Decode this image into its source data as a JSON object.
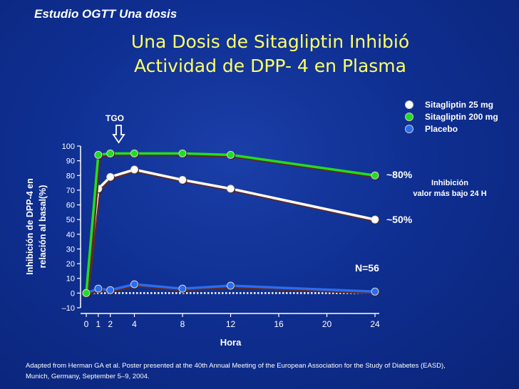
{
  "study_tag": "Estudio OGTT Una dosis",
  "title_line1": "Una Dosis de  Sitagliptin Inhibió",
  "title_line2": "Actividad de DPP- 4  en Plasma",
  "citation_line1": "Adapted from Herman GA et al. Poster presented at the 40th Annual Meeting of the European Association for the Study of Diabetes (EASD),",
  "citation_line2": "Munich, Germany, September 5–9, 2004.",
  "chart_data": {
    "type": "line",
    "xlabel": "Hora",
    "ylabel_line1": "Inhibición de DPP-4 en",
    "ylabel_line2": "relación al basal(%)",
    "ylim": [
      -10,
      100
    ],
    "yticks": [
      -10,
      0,
      10,
      20,
      30,
      40,
      50,
      60,
      70,
      80,
      90,
      100
    ],
    "ytick_labels": [
      "–10",
      "0",
      "10",
      "20",
      "30",
      "40",
      "50",
      "60",
      "70",
      "80",
      "90",
      "100"
    ],
    "xticks": [
      0,
      1,
      2,
      4,
      8,
      12,
      16,
      20,
      24
    ],
    "xtick_labels": [
      "0",
      "1",
      "2",
      "4",
      "8",
      "12",
      "16",
      "20",
      "24"
    ],
    "x": [
      0,
      1,
      2,
      4,
      8,
      12,
      24
    ],
    "series": [
      {
        "name": "Sitagliptin 25 mg",
        "color": "#ffffff",
        "values": [
          0,
          71,
          79,
          84,
          77,
          71,
          50
        ]
      },
      {
        "name": "Sitagliptin 200 mg",
        "color": "#22dd22",
        "values": [
          0,
          94,
          95,
          95,
          95,
          94,
          80
        ]
      },
      {
        "name": "Placebo",
        "color": "#2a6cf0",
        "values": [
          0,
          3,
          2,
          6,
          3,
          5,
          1
        ]
      }
    ],
    "baseline_dotted_at": 0,
    "annotations": {
      "tgo": "TGO",
      "pct80": "~80%",
      "pct50": "~50%",
      "inhib_line1": "Inhibición",
      "inhib_line2": "valor más bajo 24 H",
      "n": "N=56"
    }
  }
}
